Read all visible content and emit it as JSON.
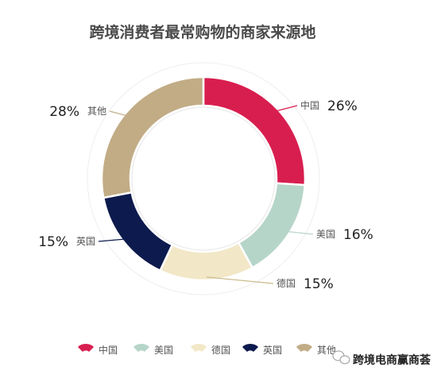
{
  "chart_data": {
    "type": "pie",
    "title": "跨境消费者最常购物的商家来源地",
    "slices": [
      {
        "label": "中国",
        "value": 26,
        "value_text": "26%",
        "color": "#d81e4f"
      },
      {
        "label": "美国",
        "value": 16,
        "value_text": "16%",
        "color": "#b6d5c9"
      },
      {
        "label": "德国",
        "value": 15,
        "value_text": "15%",
        "color": "#f2e7c6"
      },
      {
        "label": "英国",
        "value": 15,
        "value_text": "15%",
        "color": "#0c1a4d"
      },
      {
        "label": "其他",
        "value": 28,
        "value_text": "28%",
        "color": "#c1ac85"
      }
    ],
    "legend": {
      "placement": "bottom"
    }
  },
  "watermark": {
    "text": "跨境电商赢商荟",
    "icon": "chat-bubble-icon"
  }
}
